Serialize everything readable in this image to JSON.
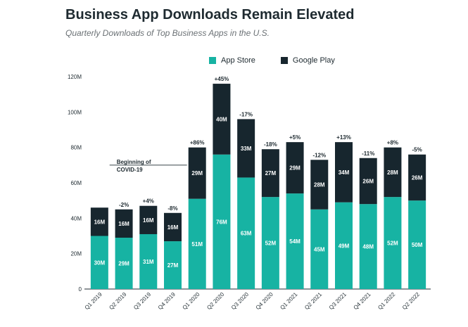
{
  "chart_data": {
    "type": "bar",
    "stacked": true,
    "title": "Business App Downloads Remain Elevated",
    "subtitle": "Quarterly Downloads of Top Business Apps in the U.S.",
    "categories": [
      "Q1 2019",
      "Q2 2019",
      "Q3 2019",
      "Q4 2019",
      "Q1 2020",
      "Q2 2020",
      "Q3 2020",
      "Q4 2020",
      "Q1 2021",
      "Q2 2021",
      "Q3 2021",
      "Q4 2021",
      "Q1 2022",
      "Q2 2022"
    ],
    "series": [
      {
        "name": "App Store",
        "color": "#17b3a3",
        "values": [
          30,
          29,
          31,
          27,
          51,
          76,
          63,
          52,
          54,
          45,
          49,
          48,
          52,
          50
        ],
        "labels": [
          "30M",
          "29M",
          "31M",
          "27M",
          "51M",
          "76M",
          "63M",
          "52M",
          "54M",
          "45M",
          "49M",
          "48M",
          "52M",
          "50M"
        ]
      },
      {
        "name": "Google Play",
        "color": "#17262e",
        "values": [
          16,
          16,
          16,
          16,
          29,
          40,
          33,
          27,
          29,
          28,
          34,
          26,
          28,
          26
        ],
        "labels": [
          "16M",
          "16M",
          "16M",
          "16M",
          "29M",
          "40M",
          "33M",
          "27M",
          "29M",
          "28M",
          "34M",
          "26M",
          "28M",
          "26M"
        ]
      }
    ],
    "change_labels": [
      "",
      "-2%",
      "+4%",
      "-8%",
      "+86%",
      "+45%",
      "-17%",
      "-18%",
      "+5%",
      "-12%",
      "+13%",
      "-11%",
      "+8%",
      "-5%"
    ],
    "y_ticks": [
      0,
      20,
      40,
      60,
      80,
      100,
      120
    ],
    "y_tick_labels": [
      "0",
      "20M",
      "40M",
      "60M",
      "80M",
      "100M",
      "120M"
    ],
    "ylim": [
      0,
      120
    ],
    "annotation": {
      "lines": [
        "Beginning of",
        "COVID-19"
      ],
      "category": "Q1 2020",
      "value": 70
    },
    "legend_position": "top-center",
    "grid": false
  }
}
